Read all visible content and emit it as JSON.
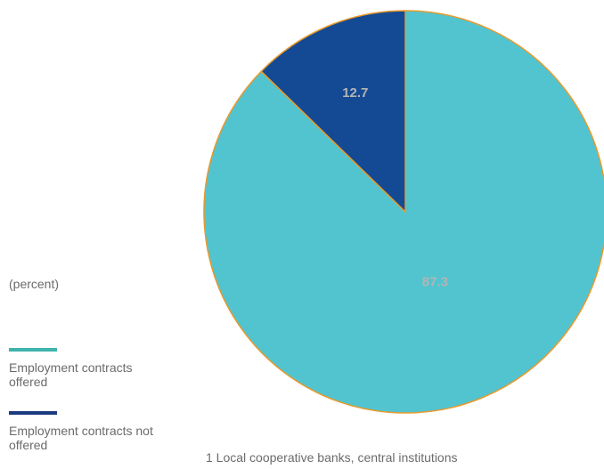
{
  "chart_data": {
    "type": "pie",
    "title": "",
    "unit_label": "(percent)",
    "slices": [
      {
        "label": "Employment contracts offered",
        "value": 87.3,
        "value_label": "87.3",
        "color": "#52c4cf"
      },
      {
        "label": "Employment contracts not offered",
        "value": 12.7,
        "value_label": "12.7",
        "color": "#144a94"
      }
    ],
    "legend": [
      {
        "label": "Employment contracts offered",
        "color": "#3fb3ad"
      },
      {
        "label": "Employment contracts not offered",
        "color": "#1d3b80"
      }
    ],
    "slice_border_color": "#e99a2c",
    "value_label_color": "#b4b4b4",
    "legend_placement": "left",
    "footnote": "1 Local cooperative banks, central institutions"
  }
}
